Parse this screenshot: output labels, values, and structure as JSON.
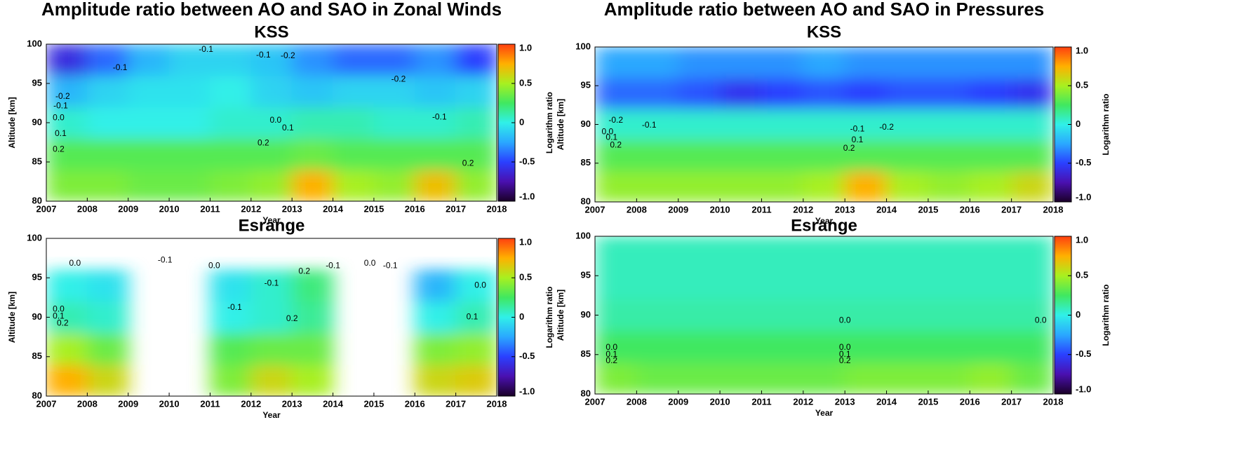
{
  "chart_data": [
    {
      "type": "heatmap",
      "title": "Amplitude ratio between AO and SAO in Zonal Winds",
      "subtitle": "KSS",
      "xlabel": "Year",
      "ylabel": "Altitude [km]",
      "colorbar_label": "Logarithm ratio",
      "xlim": [
        2007,
        2018
      ],
      "xticks": [
        2007,
        2008,
        2009,
        2010,
        2011,
        2012,
        2013,
        2014,
        2015,
        2016,
        2017,
        2018
      ],
      "ylim": [
        80,
        100
      ],
      "yticks": [
        80,
        85,
        90,
        95,
        100
      ],
      "clim": [
        -1,
        1
      ],
      "cticks": [
        {
          "value": 1,
          "label": "1.0"
        },
        0.5,
        0,
        -0.5,
        {
          "value": -1,
          "label": "-1.0"
        }
      ],
      "x": [
        2007.5,
        2008.5,
        2009.5,
        2010.5,
        2011.5,
        2012.5,
        2013.5,
        2014.5,
        2015.5,
        2016.5,
        2017.5
      ],
      "y": [
        82,
        86,
        90,
        94,
        98
      ],
      "z": [
        [
          0.4,
          0.4,
          0.35,
          0.35,
          0.4,
          0.45,
          0.75,
          0.5,
          0.45,
          0.7,
          0.45
        ],
        [
          0.3,
          0.3,
          0.3,
          0.3,
          0.3,
          0.3,
          0.35,
          0.3,
          0.3,
          0.3,
          0.3
        ],
        [
          0.05,
          0.0,
          0.0,
          0.0,
          0.05,
          0.05,
          0.1,
          0.1,
          0.05,
          0.05,
          0.1
        ],
        [
          -0.2,
          -0.1,
          -0.05,
          -0.05,
          0.0,
          -0.1,
          -0.15,
          -0.1,
          -0.1,
          -0.15,
          -0.1
        ],
        [
          -0.6,
          -0.4,
          -0.2,
          -0.1,
          -0.1,
          -0.15,
          -0.3,
          -0.4,
          -0.4,
          -0.3,
          -0.5
        ]
      ],
      "contour_labels": [
        {
          "value": -0.1,
          "x": 2008.8,
          "y": 97.0
        },
        {
          "value": -0.1,
          "x": 2010.9,
          "y": 99.3
        },
        {
          "value": -0.1,
          "x": 2012.3,
          "y": 98.6
        },
        {
          "value": -0.2,
          "x": 2012.9,
          "y": 98.5
        },
        {
          "value": -0.2,
          "x": 2007.4,
          "y": 93.3
        },
        {
          "value": -0.1,
          "x": 2007.35,
          "y": 92.1
        },
        {
          "value": {
            "value": 0,
            "label": "0.0"
          },
          "x": 2007.3,
          "y": 90.6
        },
        {
          "value": 0.1,
          "x": 2007.35,
          "y": 88.6
        },
        {
          "value": 0.2,
          "x": 2007.3,
          "y": 86.6
        },
        {
          "value": {
            "value": 0,
            "label": "0.0"
          },
          "x": 2012.6,
          "y": 90.3
        },
        {
          "value": 0.1,
          "x": 2012.9,
          "y": 89.3
        },
        {
          "value": 0.2,
          "x": 2012.3,
          "y": 87.4
        },
        {
          "value": -0.2,
          "x": 2015.6,
          "y": 95.5
        },
        {
          "value": -0.1,
          "x": 2016.6,
          "y": 90.7
        },
        {
          "value": 0.2,
          "x": 2017.3,
          "y": 84.8
        }
      ]
    },
    {
      "type": "heatmap",
      "title": "Amplitude ratio between AO and SAO in Pressures",
      "subtitle": "KSS",
      "xlabel": "Year",
      "ylabel": "Altitude [km]",
      "colorbar_label": "Logarithm ratio",
      "xlim": [
        2007,
        2018
      ],
      "xticks": [
        2007,
        2008,
        2009,
        2010,
        2011,
        2012,
        2013,
        2014,
        2015,
        2016,
        2017,
        2018
      ],
      "ylim": [
        80,
        100
      ],
      "yticks": [
        80,
        85,
        90,
        95,
        100
      ],
      "clim": [
        -1,
        1
      ],
      "cticks": [
        {
          "value": 1,
          "label": "1.0"
        },
        0.5,
        0,
        -0.5,
        {
          "value": -1,
          "label": "-1.0"
        }
      ],
      "x": [
        2007.5,
        2008.5,
        2009.5,
        2010.5,
        2011.5,
        2012.5,
        2013.5,
        2014.5,
        2015.5,
        2016.5,
        2017.5
      ],
      "y": [
        82,
        86,
        90,
        94,
        98
      ],
      "z": [
        [
          0.45,
          0.45,
          0.45,
          0.45,
          0.45,
          0.5,
          0.75,
          0.5,
          0.45,
          0.5,
          0.6
        ],
        [
          0.3,
          0.3,
          0.3,
          0.3,
          0.3,
          0.3,
          0.3,
          0.3,
          0.3,
          0.3,
          0.3
        ],
        [
          0.05,
          0.05,
          0.05,
          0.05,
          0.05,
          0.05,
          0.05,
          0.05,
          0.05,
          0.05,
          0.05
        ],
        [
          -0.4,
          -0.4,
          -0.45,
          -0.55,
          -0.5,
          -0.45,
          -0.5,
          -0.45,
          -0.45,
          -0.5,
          -0.55
        ],
        [
          -0.25,
          -0.25,
          -0.3,
          -0.3,
          -0.3,
          -0.25,
          -0.3,
          -0.3,
          -0.3,
          -0.3,
          -0.3
        ]
      ],
      "contour_labels": [
        {
          "value": -0.2,
          "x": 2007.5,
          "y": 90.5
        },
        {
          "value": -0.1,
          "x": 2008.3,
          "y": 89.9
        },
        {
          "value": {
            "value": 0,
            "label": "0.0"
          },
          "x": 2007.3,
          "y": 89.0
        },
        {
          "value": 0.1,
          "x": 2007.4,
          "y": 88.3
        },
        {
          "value": 0.2,
          "x": 2007.5,
          "y": 87.3
        },
        {
          "value": -0.1,
          "x": 2013.3,
          "y": 89.4
        },
        {
          "value": -0.2,
          "x": 2014.0,
          "y": 89.6
        },
        {
          "value": 0.1,
          "x": 2013.3,
          "y": 88.0
        },
        {
          "value": 0.2,
          "x": 2013.1,
          "y": 86.9
        }
      ]
    },
    {
      "type": "heatmap",
      "subtitle": "Esrange",
      "xlabel": "Year",
      "ylabel": "Altitude [km]",
      "colorbar_label": "Logarithm ratio",
      "xlim": [
        2007,
        2018
      ],
      "xticks": [
        2007,
        2008,
        2009,
        2010,
        2011,
        2012,
        2013,
        2014,
        2015,
        2016,
        2017,
        2018
      ],
      "ylim": [
        80,
        100
      ],
      "yticks": [
        80,
        85,
        90,
        95,
        100
      ],
      "clim": [
        -1,
        1
      ],
      "cticks": [
        {
          "value": 1,
          "label": "1.0"
        },
        0.5,
        0,
        -0.5,
        {
          "value": -1,
          "label": "-1.0"
        }
      ],
      "x": [
        2007.5,
        2008.5,
        2009.5,
        2010.5,
        2011.5,
        2012.5,
        2013.5,
        2014.5,
        2015.5,
        2016.5,
        2017.5
      ],
      "y": [
        82,
        86,
        90,
        94,
        98
      ],
      "z": [
        [
          0.75,
          0.6,
          null,
          null,
          0.4,
          0.6,
          0.5,
          null,
          null,
          0.6,
          0.65
        ],
        [
          0.5,
          0.35,
          null,
          null,
          0.3,
          0.35,
          0.35,
          null,
          null,
          0.4,
          0.45
        ],
        [
          0.1,
          0.05,
          null,
          null,
          0.0,
          0.05,
          0.15,
          null,
          null,
          0.0,
          0.1
        ],
        [
          0.0,
          -0.05,
          null,
          null,
          -0.05,
          0.05,
          0.2,
          null,
          null,
          -0.2,
          0.0
        ],
        [
          null,
          null,
          null,
          null,
          null,
          null,
          null,
          null,
          null,
          null,
          null
        ]
      ],
      "contour_labels": [
        {
          "value": {
            "value": 0,
            "label": "0.0"
          },
          "x": 2007.7,
          "y": 96.8
        },
        {
          "value": {
            "value": 0,
            "label": "0.0"
          },
          "x": 2007.3,
          "y": 91.0
        },
        {
          "value": 0.1,
          "x": 2007.3,
          "y": 90.1
        },
        {
          "value": 0.2,
          "x": 2007.4,
          "y": 89.2
        },
        {
          "value": -0.1,
          "x": 2009.9,
          "y": 97.2
        },
        {
          "value": {
            "value": 0,
            "label": "0.0"
          },
          "x": 2011.1,
          "y": 96.5
        },
        {
          "value": -0.1,
          "x": 2011.6,
          "y": 91.2
        },
        {
          "value": -0.1,
          "x": 2012.5,
          "y": 94.3
        },
        {
          "value": 0.2,
          "x": 2013.3,
          "y": 95.8
        },
        {
          "value": 0.2,
          "x": 2013.0,
          "y": 89.8
        },
        {
          "value": -0.1,
          "x": 2014.0,
          "y": 96.5
        },
        {
          "value": {
            "value": 0,
            "label": "0.0"
          },
          "x": 2014.9,
          "y": 96.8
        },
        {
          "value": -0.1,
          "x": 2015.4,
          "y": 96.5
        },
        {
          "value": {
            "value": 0,
            "label": "0.0"
          },
          "x": 2017.6,
          "y": 94.0
        },
        {
          "value": 0.1,
          "x": 2017.4,
          "y": 90.0
        }
      ]
    },
    {
      "type": "heatmap",
      "subtitle": "Esrange",
      "xlabel": "Year",
      "ylabel": "Altitude [km]",
      "colorbar_label": "Logarithm ratio",
      "xlim": [
        2007,
        2018
      ],
      "xticks": [
        2007,
        2008,
        2009,
        2010,
        2011,
        2012,
        2013,
        2014,
        2015,
        2016,
        2017,
        2018
      ],
      "ylim": [
        80,
        100
      ],
      "yticks": [
        80,
        85,
        90,
        95,
        100
      ],
      "clim": [
        -1,
        1
      ],
      "cticks": [
        {
          "value": 1,
          "label": "1.0"
        },
        0.5,
        0,
        -0.5,
        {
          "value": -1,
          "label": "-1.0"
        }
      ],
      "x": [
        2007.5,
        2008.5,
        2009.5,
        2010.5,
        2011.5,
        2012.5,
        2013.5,
        2014.5,
        2015.5,
        2016.5,
        2017.5
      ],
      "y": [
        82,
        86,
        90,
        94,
        98
      ],
      "z": [
        [
          0.4,
          0.35,
          0.35,
          0.35,
          0.35,
          0.35,
          0.4,
          0.4,
          0.4,
          0.45,
          0.35
        ],
        [
          0.25,
          0.25,
          0.25,
          0.25,
          0.25,
          0.25,
          0.25,
          0.25,
          0.25,
          0.25,
          0.25
        ],
        [
          0.12,
          0.12,
          0.12,
          0.12,
          0.12,
          0.12,
          0.12,
          0.12,
          0.12,
          0.12,
          0.12
        ],
        [
          0.08,
          0.08,
          0.08,
          0.08,
          0.08,
          0.08,
          0.08,
          0.08,
          0.08,
          0.08,
          0.08
        ],
        [
          0.08,
          0.08,
          0.08,
          0.08,
          0.08,
          0.08,
          0.08,
          0.08,
          0.08,
          0.08,
          0.08
        ]
      ],
      "contour_labels": [
        {
          "value": {
            "value": 0,
            "label": "0.0"
          },
          "x": 2017.7,
          "y": 89.3
        },
        {
          "value": {
            "value": 0,
            "label": "0.0"
          },
          "x": 2013.0,
          "y": 89.3
        },
        {
          "value": {
            "value": 0,
            "label": "0.0"
          },
          "x": 2007.4,
          "y": 85.9
        },
        {
          "value": 0.1,
          "x": 2007.4,
          "y": 85.0
        },
        {
          "value": 0.2,
          "x": 2007.4,
          "y": 84.2
        },
        {
          "value": {
            "value": 0,
            "label": "0.0"
          },
          "x": 2013.0,
          "y": 85.9
        },
        {
          "value": 0.1,
          "x": 2013.0,
          "y": 85.0
        },
        {
          "value": 0.2,
          "x": 2013.0,
          "y": 84.2
        }
      ]
    }
  ]
}
